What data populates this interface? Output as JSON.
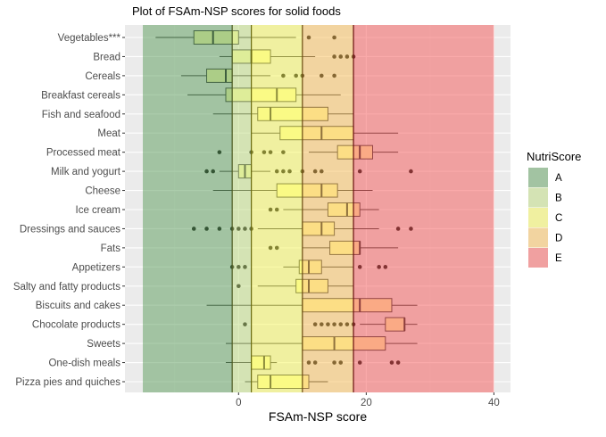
{
  "chart_data": {
    "type": "boxplot",
    "title": "Plot of FSAm-NSP scores for solid foods",
    "xlabel": "FSAm-NSP score",
    "ylabel": "",
    "xlim": [
      -17.8,
      42.6
    ],
    "xticks": [
      0,
      20,
      40
    ],
    "grid": true,
    "legend": {
      "title": "NutriScore",
      "placement": "right",
      "entries": [
        {
          "label": "A",
          "color": "#a2c3a2",
          "from": -15,
          "to": -1
        },
        {
          "label": "B",
          "color": "#d4e3b4",
          "from": -1,
          "to": 2
        },
        {
          "label": "C",
          "color": "#f0f0a0",
          "from": 2,
          "to": 10
        },
        {
          "label": "D",
          "color": "#f2d4a0",
          "from": 10,
          "to": 18
        },
        {
          "label": "E",
          "color": "#f0a0a0",
          "from": 18,
          "to": 40
        }
      ]
    },
    "categories": [
      {
        "name": "Vegetables***",
        "whisker_low": -13,
        "q1": -7,
        "median": -4,
        "q3": 0,
        "whisker_high": 9,
        "outliers": [
          11,
          15
        ]
      },
      {
        "name": "Bread",
        "whisker_low": -3,
        "q1": -1,
        "median": 2,
        "q3": 5,
        "whisker_high": 12,
        "outliers": [
          15,
          16,
          17,
          18
        ]
      },
      {
        "name": "Cereals",
        "whisker_low": -9,
        "q1": -5,
        "median": -2,
        "q3": -1,
        "whisker_high": 5,
        "outliers": [
          7,
          9,
          10,
          13,
          15
        ]
      },
      {
        "name": "Breakfast cereals",
        "whisker_low": -8,
        "q1": -2,
        "median": 6,
        "q3": 9,
        "whisker_high": 16,
        "outliers": []
      },
      {
        "name": "Fish and seafood",
        "whisker_low": -4,
        "q1": 3,
        "median": 5,
        "q3": 14,
        "whisker_high": 18,
        "outliers": []
      },
      {
        "name": "Meat",
        "whisker_low": 2,
        "q1": 6.5,
        "median": 13,
        "q3": 18,
        "whisker_high": 25,
        "outliers": []
      },
      {
        "name": "Processed meat",
        "whisker_low": 11,
        "q1": 15.5,
        "median": 19,
        "q3": 21,
        "whisker_high": 25,
        "outliers": [
          -3,
          2,
          4,
          5,
          7
        ]
      },
      {
        "name": "Milk and yogurt",
        "whisker_low": -3,
        "q1": 0,
        "median": 1,
        "q3": 2,
        "whisker_high": 5,
        "outliers": [
          -5,
          -4,
          6,
          7,
          8,
          10,
          12,
          13,
          19,
          27
        ]
      },
      {
        "name": "Cheese",
        "whisker_low": -4,
        "q1": 6,
        "median": 13,
        "q3": 15.5,
        "whisker_high": 21,
        "outliers": []
      },
      {
        "name": "Ice cream",
        "whisker_low": 7,
        "q1": 14,
        "median": 17,
        "q3": 19,
        "whisker_high": 22,
        "outliers": [
          5,
          6
        ]
      },
      {
        "name": "Dressings and sauces",
        "whisker_low": 3,
        "q1": 10,
        "median": 13,
        "q3": 15,
        "whisker_high": 22,
        "outliers": [
          -7,
          -5,
          -3,
          -1,
          0,
          1,
          2,
          25,
          27
        ]
      },
      {
        "name": "Fats",
        "whisker_low": 10,
        "q1": 14.3,
        "median": 19,
        "q3": 19,
        "whisker_high": 25,
        "outliers": [
          5,
          6
        ]
      },
      {
        "name": "Appetizers",
        "whisker_low": 7,
        "q1": 9.5,
        "median": 11,
        "q3": 13,
        "whisker_high": 18,
        "outliers": [
          -1,
          0,
          1,
          19,
          22,
          23
        ]
      },
      {
        "name": "Salty and fatty products",
        "whisker_low": 3,
        "q1": 9,
        "median": 11,
        "q3": 14,
        "whisker_high": 18,
        "outliers": [
          0
        ]
      },
      {
        "name": "Biscuits and cakes",
        "whisker_low": -5,
        "q1": 10,
        "median": 19,
        "q3": 24,
        "whisker_high": 28,
        "outliers": []
      },
      {
        "name": "Chocolate products",
        "whisker_low": 19,
        "q1": 23,
        "median": 26,
        "q3": 26,
        "whisker_high": 28,
        "outliers": [
          1,
          12,
          13,
          14,
          15,
          16,
          17,
          18
        ]
      },
      {
        "name": "Sweets",
        "whisker_low": -2,
        "q1": 10,
        "median": 15,
        "q3": 23,
        "whisker_high": 28,
        "outliers": []
      },
      {
        "name": "One-dish meals",
        "whisker_low": -2,
        "q1": 2,
        "median": 4,
        "q3": 5,
        "whisker_high": 6,
        "outliers": [
          11,
          12,
          15,
          16,
          19,
          24,
          25
        ]
      },
      {
        "name": "Pizza pies and quiches",
        "whisker_low": 1,
        "q1": 3,
        "median": 5,
        "q3": 11,
        "whisker_high": 14,
        "outliers": []
      }
    ]
  }
}
